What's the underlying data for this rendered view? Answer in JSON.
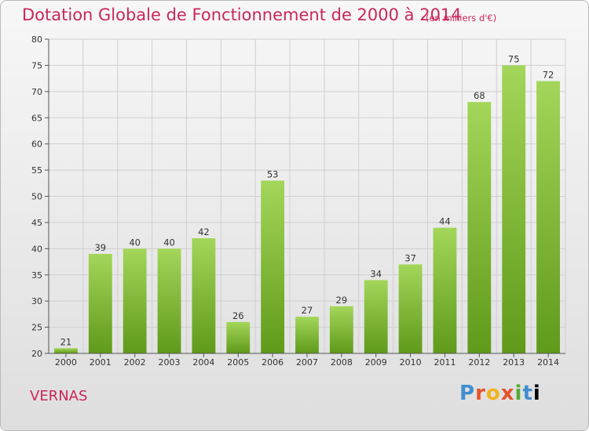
{
  "header": {
    "title": "Dotation Globale de Fonctionnement de 2000 à 2014",
    "unit": "(en milliers d'€)"
  },
  "commune": "VERNAS",
  "logo": {
    "text": "Proxiti"
  },
  "colors": {
    "title": "#c8285a",
    "bar_light": "#a3d65a",
    "bar_dark": "#5f9a1a",
    "grid": "#cfcfcf",
    "axis": "#555555"
  },
  "chart_data": {
    "type": "bar",
    "title": "Dotation Globale de Fonctionnement de 2000 à 2014",
    "xlabel": "",
    "ylabel": "",
    "categories": [
      "2000",
      "2001",
      "2002",
      "2003",
      "2004",
      "2005",
      "2006",
      "2007",
      "2008",
      "2009",
      "2010",
      "2011",
      "2012",
      "2013",
      "2014"
    ],
    "values": [
      21,
      39,
      40,
      40,
      42,
      26,
      53,
      27,
      29,
      34,
      37,
      44,
      68,
      75,
      72
    ],
    "ylim": [
      20,
      80
    ],
    "yticks": [
      20,
      25,
      30,
      35,
      40,
      45,
      50,
      55,
      60,
      65,
      70,
      75,
      80
    ],
    "grid": true,
    "legend": "none"
  }
}
